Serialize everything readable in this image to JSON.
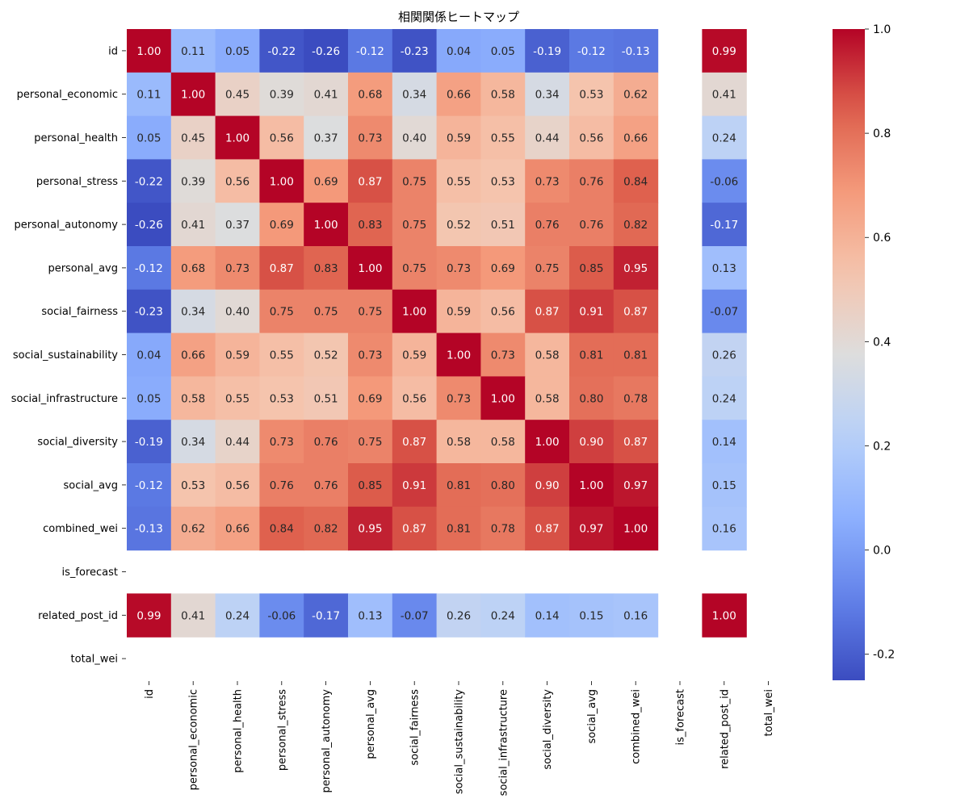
{
  "chart_data": {
    "type": "heatmap",
    "title": "相関関係ヒートマップ",
    "colormap": "coolwarm",
    "vmin": -0.25,
    "vmax": 1.0,
    "rows": [
      "id",
      "personal_economic",
      "personal_health",
      "personal_stress",
      "personal_autonomy",
      "personal_avg",
      "social_fairness",
      "social_sustainability",
      "social_infrastructure",
      "social_diversity",
      "social_avg",
      "combined_wei",
      "is_forecast",
      "related_post_id",
      "total_wei"
    ],
    "columns": [
      "id",
      "personal_economic",
      "personal_health",
      "personal_stress",
      "personal_autonomy",
      "personal_avg",
      "social_fairness",
      "social_sustainability",
      "social_infrastructure",
      "social_diversity",
      "social_avg",
      "combined_wei",
      "is_forecast",
      "related_post_id",
      "total_wei"
    ],
    "values": [
      [
        1.0,
        0.11,
        0.05,
        -0.22,
        -0.26,
        -0.12,
        -0.23,
        0.04,
        0.05,
        -0.19,
        -0.12,
        -0.13,
        null,
        0.99,
        null
      ],
      [
        0.11,
        1.0,
        0.45,
        0.39,
        0.41,
        0.68,
        0.34,
        0.66,
        0.58,
        0.34,
        0.53,
        0.62,
        null,
        0.41,
        null
      ],
      [
        0.05,
        0.45,
        1.0,
        0.56,
        0.37,
        0.73,
        0.4,
        0.59,
        0.55,
        0.44,
        0.56,
        0.66,
        null,
        0.24,
        null
      ],
      [
        -0.22,
        0.39,
        0.56,
        1.0,
        0.69,
        0.87,
        0.75,
        0.55,
        0.53,
        0.73,
        0.76,
        0.84,
        null,
        -0.06,
        null
      ],
      [
        -0.26,
        0.41,
        0.37,
        0.69,
        1.0,
        0.83,
        0.75,
        0.52,
        0.51,
        0.76,
        0.76,
        0.82,
        null,
        -0.17,
        null
      ],
      [
        -0.12,
        0.68,
        0.73,
        0.87,
        0.83,
        1.0,
        0.75,
        0.73,
        0.69,
        0.75,
        0.85,
        0.95,
        null,
        0.13,
        null
      ],
      [
        -0.23,
        0.34,
        0.4,
        0.75,
        0.75,
        0.75,
        1.0,
        0.59,
        0.56,
        0.87,
        0.91,
        0.87,
        null,
        -0.07,
        null
      ],
      [
        0.04,
        0.66,
        0.59,
        0.55,
        0.52,
        0.73,
        0.59,
        1.0,
        0.73,
        0.58,
        0.81,
        0.81,
        null,
        0.26,
        null
      ],
      [
        0.05,
        0.58,
        0.55,
        0.53,
        0.51,
        0.69,
        0.56,
        0.73,
        1.0,
        0.58,
        0.8,
        0.78,
        null,
        0.24,
        null
      ],
      [
        -0.19,
        0.34,
        0.44,
        0.73,
        0.76,
        0.75,
        0.87,
        0.58,
        0.58,
        1.0,
        0.9,
        0.87,
        null,
        0.14,
        null
      ],
      [
        -0.12,
        0.53,
        0.56,
        0.76,
        0.76,
        0.85,
        0.91,
        0.81,
        0.8,
        0.9,
        1.0,
        0.97,
        null,
        0.15,
        null
      ],
      [
        -0.13,
        0.62,
        0.66,
        0.84,
        0.82,
        0.95,
        0.87,
        0.81,
        0.78,
        0.87,
        0.97,
        1.0,
        null,
        0.16,
        null
      ],
      [
        null,
        null,
        null,
        null,
        null,
        null,
        null,
        null,
        null,
        null,
        null,
        null,
        null,
        null,
        null
      ],
      [
        0.99,
        0.41,
        0.24,
        -0.06,
        -0.17,
        0.13,
        -0.07,
        0.26,
        0.24,
        0.14,
        0.15,
        0.16,
        null,
        1.0,
        null
      ],
      [
        null,
        null,
        null,
        null,
        null,
        null,
        null,
        null,
        null,
        null,
        null,
        null,
        null,
        null,
        null
      ]
    ],
    "colorbar_ticks": [
      -0.2,
      0.0,
      0.2,
      0.4,
      0.6,
      0.8,
      1.0
    ],
    "colorbar_tick_labels": [
      "-0.2",
      "0.0",
      "0.2",
      "0.4",
      "0.6",
      "0.8",
      "1.0"
    ]
  }
}
